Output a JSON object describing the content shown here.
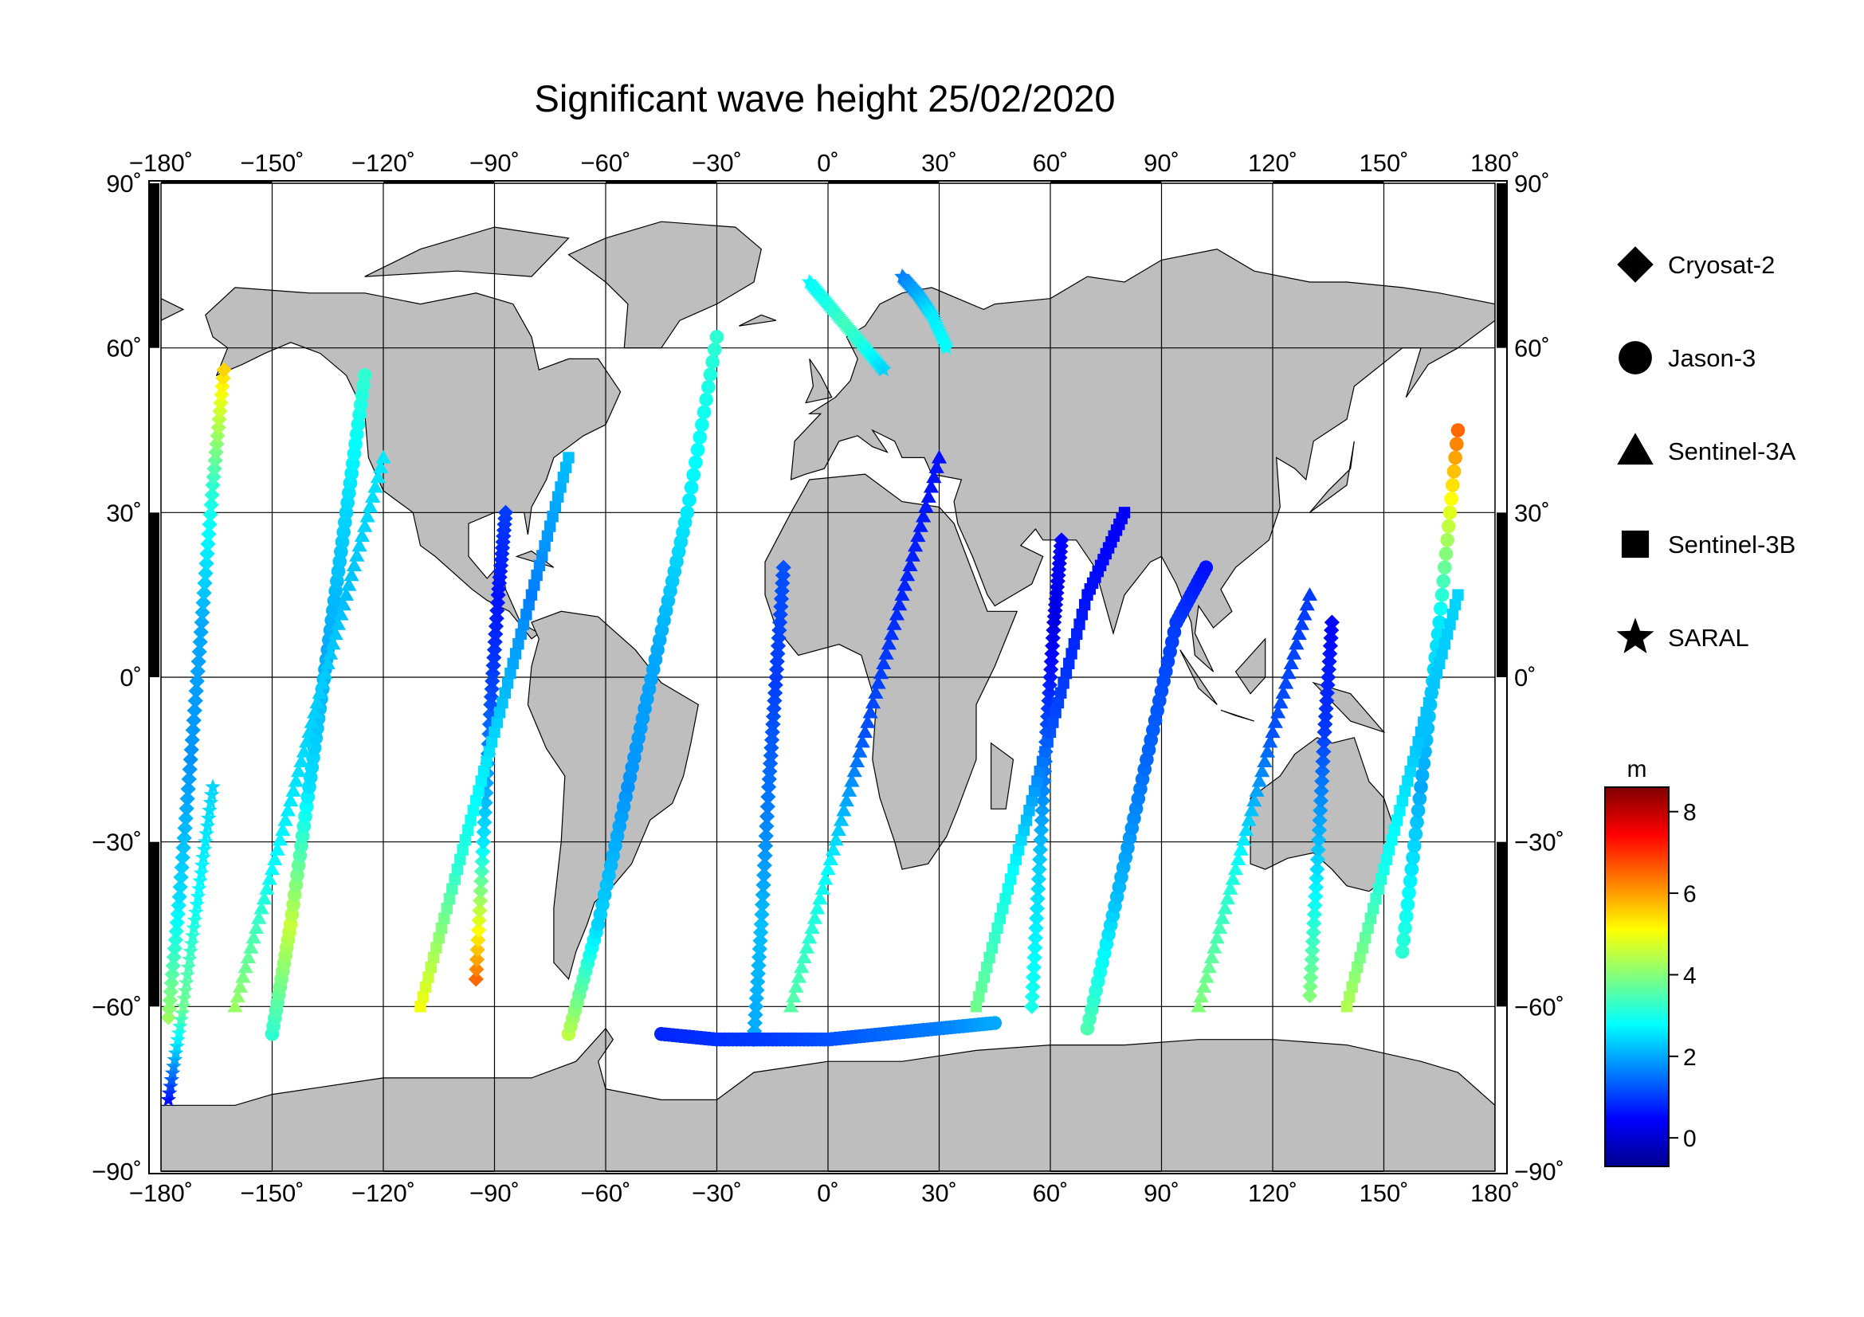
{
  "title": "Significant wave height 25/02/2020",
  "chart_data": {
    "type": "scatter",
    "title": "Significant wave height 25/02/2020",
    "projection": "equirectangular",
    "lon_range": [
      -180,
      180
    ],
    "lat_range": [
      -90,
      90
    ],
    "lon_ticks": [
      -180,
      -150,
      -120,
      -90,
      -60,
      -30,
      0,
      30,
      60,
      90,
      120,
      150,
      180
    ],
    "lat_ticks": [
      -90,
      -60,
      -30,
      0,
      30,
      60,
      90
    ],
    "lon_tick_labels": [
      "−180˚",
      "−150˚",
      "−120˚",
      "−90˚",
      "−60˚",
      "−30˚",
      "0˚",
      "30˚",
      "60˚",
      "90˚",
      "120˚",
      "150˚",
      "180˚"
    ],
    "lat_tick_labels": [
      "−90˚",
      "−60˚",
      "−30˚",
      "0˚",
      "30˚",
      "60˚",
      "90˚"
    ],
    "grid": true,
    "colorbar": {
      "unit": "m",
      "range": [
        -0.7,
        8.6
      ],
      "ticks": [
        0,
        2,
        4,
        6,
        8
      ],
      "tick_labels": [
        "0",
        "2",
        "4",
        "6",
        "8"
      ],
      "colormap": "jet"
    },
    "series": [
      {
        "name": "Cryosat-2",
        "marker": "diamond",
        "tracks": [
          {
            "lon": [
              -178,
              -175,
              -172,
              -169,
              -166,
              -163
            ],
            "lat": [
              -62,
              -40,
              -15,
              10,
              35,
              56
            ],
            "swh": [
              4.2,
              2.5,
              1.8,
              2.0,
              3.2,
              5.5
            ]
          },
          {
            "lon": [
              -95,
              -93,
              -91,
              -89,
              -87
            ],
            "lat": [
              -55,
              -30,
              -5,
              15,
              30
            ],
            "swh": [
              6.5,
              2.6,
              1.2,
              0.6,
              1.0
            ]
          },
          {
            "lon": [
              -20,
              -18,
              -16,
              -14,
              -12
            ],
            "lat": [
              -66,
              -45,
              -20,
              0,
              20
            ],
            "swh": [
              2.0,
              2.2,
              1.5,
              1.0,
              1.2
            ]
          },
          {
            "lon": [
              55,
              57,
              59,
              61,
              63
            ],
            "lat": [
              -60,
              -35,
              -10,
              10,
              25
            ],
            "swh": [
              3.0,
              2.4,
              1.2,
              0.2,
              0.5
            ]
          },
          {
            "lon": [
              130,
              132,
              134,
              136
            ],
            "lat": [
              -58,
              -35,
              -10,
              10
            ],
            "swh": [
              4.0,
              2.5,
              1.0,
              0.5
            ]
          }
        ]
      },
      {
        "name": "Jason-3",
        "marker": "circle",
        "tracks": [
          {
            "lon": [
              -150,
              -145,
              -140,
              -135,
              -130,
              -125
            ],
            "lat": [
              -65,
              -45,
              -20,
              5,
              30,
              55
            ],
            "swh": [
              3.2,
              4.6,
              2.5,
              2.0,
              2.4,
              3.2
            ]
          },
          {
            "lon": [
              -70,
              -62,
              -54,
              -46,
              -38,
              -30
            ],
            "lat": [
              -65,
              -45,
              -20,
              5,
              30,
              62
            ],
            "swh": [
              4.5,
              2.4,
              1.8,
              2.0,
              2.6,
              3.2
            ]
          },
          {
            "lon": [
              -45,
              -30,
              -15,
              0,
              15,
              30,
              45
            ],
            "lat": [
              -65,
              -66,
              -66,
              -66,
              -65,
              -64,
              -63
            ],
            "swh": [
              0.8,
              0.9,
              1.0,
              1.2,
              1.4,
              1.6,
              2.0
            ]
          },
          {
            "lon": [
              70,
              78,
              86,
              94,
              102
            ],
            "lat": [
              -64,
              -40,
              -15,
              10,
              20
            ],
            "swh": [
              3.5,
              2.2,
              1.4,
              1.0,
              0.6
            ]
          },
          {
            "lon": [
              155,
              160,
              165,
              170
            ],
            "lat": [
              -50,
              -20,
              10,
              45
            ],
            "swh": [
              3.2,
              2.0,
              2.6,
              6.5
            ]
          }
        ]
      },
      {
        "name": "Sentinel-3A",
        "marker": "triangle",
        "tracks": [
          {
            "lon": [
              -160,
              -150,
              -140,
              -130,
              -120
            ],
            "lat": [
              -60,
              -35,
              -10,
              15,
              40
            ],
            "swh": [
              4.2,
              2.8,
              2.4,
              2.2,
              2.6
            ]
          },
          {
            "lon": [
              -10,
              0,
              10,
              20,
              30
            ],
            "lat": [
              -60,
              -35,
              -10,
              15,
              40
            ],
            "swh": [
              3.6,
              2.8,
              1.2,
              0.8,
              0.6
            ]
          },
          {
            "lon": [
              100,
              110,
              120,
              130
            ],
            "lat": [
              -60,
              -35,
              -10,
              15
            ],
            "swh": [
              4.0,
              3.0,
              1.2,
              1.0
            ]
          }
        ]
      },
      {
        "name": "Sentinel-3B",
        "marker": "square",
        "tracks": [
          {
            "lon": [
              -110,
              -100,
              -90,
              -80,
              -70
            ],
            "lat": [
              -60,
              -35,
              -10,
              15,
              40
            ],
            "swh": [
              5.0,
              3.2,
              2.4,
              1.6,
              2.2
            ]
          },
          {
            "lon": [
              40,
              50,
              60,
              70,
              80
            ],
            "lat": [
              -60,
              -35,
              -10,
              15,
              30
            ],
            "swh": [
              3.8,
              2.8,
              1.2,
              0.6,
              0.4
            ]
          },
          {
            "lon": [
              140,
              150,
              160,
              170
            ],
            "lat": [
              -60,
              -35,
              -10,
              15
            ],
            "swh": [
              4.4,
              3.0,
              2.2,
              2.4
            ]
          }
        ]
      },
      {
        "name": "SARAL",
        "marker": "star",
        "tracks": [
          {
            "lon": [
              -178,
              -174,
              -170,
              -166
            ],
            "lat": [
              -77,
              -60,
              -40,
              -20
            ],
            "swh": [
              0.6,
              3.8,
              2.8,
              2.4
            ]
          },
          {
            "lon": [
              -5,
              0,
              5,
              10,
              15
            ],
            "lat": [
              72,
              68,
              64,
              60,
              56
            ],
            "swh": [
              2.8,
              3.0,
              3.4,
              3.0,
              2.4
            ]
          },
          {
            "lon": [
              20,
              24,
              28,
              32
            ],
            "lat": [
              73,
              70,
              66,
              60
            ],
            "swh": [
              1.6,
              2.0,
              2.6,
              2.8
            ]
          }
        ]
      }
    ]
  }
}
